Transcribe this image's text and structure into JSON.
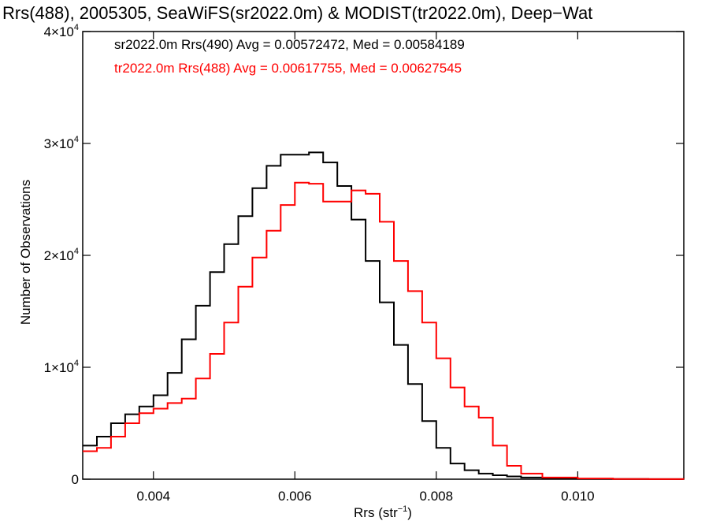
{
  "chart_data": {
    "type": "line",
    "step": true,
    "title": "Rrs(488), 2005305, SeaWiFS(sr2022.0m) & MODIST(tr2022.0m), Deep−Wat",
    "xlabel": "Rrs (str",
    "xlabel_sup": "−1",
    "xlabel_end": ")",
    "ylabel": "Number of Observations",
    "xlim": [
      0.003,
      0.0115
    ],
    "ylim": [
      0,
      40000
    ],
    "grid": false,
    "legend_position": "top-left",
    "x_ticks": [
      {
        "value": 0.004,
        "label": "0.004"
      },
      {
        "value": 0.006,
        "label": "0.006"
      },
      {
        "value": 0.008,
        "label": "0.008"
      },
      {
        "value": 0.01,
        "label": "0.010"
      }
    ],
    "y_ticks": [
      {
        "value": 0,
        "label": "0",
        "exp": ""
      },
      {
        "value": 10000,
        "label": "1×10",
        "exp": "4"
      },
      {
        "value": 20000,
        "label": "2×10",
        "exp": "4"
      },
      {
        "value": 30000,
        "label": "3×10",
        "exp": "4"
      },
      {
        "value": 40000,
        "label": "4×10",
        "exp": "4"
      }
    ],
    "series": [
      {
        "name": "sr2022.0m Rrs(490) Avg = 0.00572472, Med = 0.00584189",
        "color": "#000000",
        "points": [
          [
            0.003,
            3000
          ],
          [
            0.0032,
            3800
          ],
          [
            0.0034,
            5000
          ],
          [
            0.0036,
            5800
          ],
          [
            0.0038,
            6500
          ],
          [
            0.004,
            7500
          ],
          [
            0.0042,
            9500
          ],
          [
            0.0044,
            12500
          ],
          [
            0.0046,
            15500
          ],
          [
            0.0048,
            18500
          ],
          [
            0.005,
            21000
          ],
          [
            0.0052,
            23500
          ],
          [
            0.0054,
            26000
          ],
          [
            0.0056,
            28000
          ],
          [
            0.0058,
            29000
          ],
          [
            0.006,
            29000
          ],
          [
            0.0062,
            29200
          ],
          [
            0.0064,
            28300
          ],
          [
            0.0066,
            26200
          ],
          [
            0.0068,
            23200
          ],
          [
            0.007,
            19500
          ],
          [
            0.0072,
            15800
          ],
          [
            0.0074,
            12000
          ],
          [
            0.0076,
            8500
          ],
          [
            0.0078,
            5200
          ],
          [
            0.008,
            2800
          ],
          [
            0.0082,
            1400
          ],
          [
            0.0084,
            800
          ],
          [
            0.0086,
            500
          ],
          [
            0.0088,
            350
          ],
          [
            0.009,
            250
          ],
          [
            0.0092,
            150
          ],
          [
            0.0095,
            80
          ],
          [
            0.01,
            30
          ],
          [
            0.0105,
            15
          ],
          [
            0.011,
            5
          ],
          [
            0.0115,
            0
          ]
        ]
      },
      {
        "name": "tr2022.0m Rrs(488) Avg = 0.00617755, Med = 0.00627545",
        "color": "#ff0000",
        "points": [
          [
            0.003,
            2500
          ],
          [
            0.0032,
            2800
          ],
          [
            0.0034,
            3800
          ],
          [
            0.0036,
            5000
          ],
          [
            0.0038,
            5900
          ],
          [
            0.004,
            6300
          ],
          [
            0.0042,
            6800
          ],
          [
            0.0044,
            7200
          ],
          [
            0.0046,
            9000
          ],
          [
            0.0048,
            11200
          ],
          [
            0.005,
            14000
          ],
          [
            0.0052,
            17200
          ],
          [
            0.0054,
            19800
          ],
          [
            0.0056,
            22200
          ],
          [
            0.0058,
            24500
          ],
          [
            0.006,
            26500
          ],
          [
            0.0062,
            26400
          ],
          [
            0.0064,
            24800
          ],
          [
            0.0066,
            24800
          ],
          [
            0.0068,
            25800
          ],
          [
            0.007,
            25500
          ],
          [
            0.0072,
            23000
          ],
          [
            0.0074,
            19500
          ],
          [
            0.0076,
            16800
          ],
          [
            0.0078,
            14000
          ],
          [
            0.008,
            10800
          ],
          [
            0.0082,
            8200
          ],
          [
            0.0084,
            6500
          ],
          [
            0.0086,
            5500
          ],
          [
            0.0088,
            3000
          ],
          [
            0.009,
            1200
          ],
          [
            0.0092,
            500
          ],
          [
            0.0095,
            150
          ],
          [
            0.01,
            60
          ],
          [
            0.0105,
            20
          ],
          [
            0.011,
            5
          ],
          [
            0.0115,
            0
          ]
        ]
      }
    ]
  }
}
